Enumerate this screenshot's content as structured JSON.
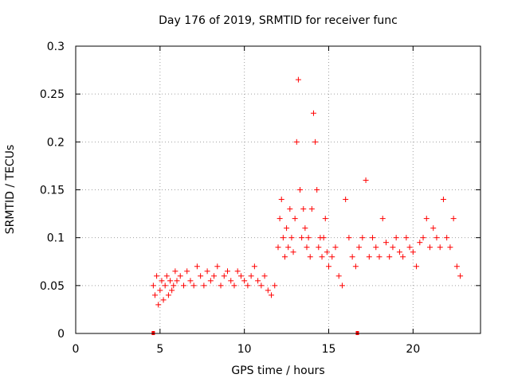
{
  "chart_data": {
    "type": "scatter",
    "title": "Day 176 of 2019, SRMTID for receiver func",
    "xlabel": "GPS time / hours",
    "ylabel": "SRMTID / TECUs",
    "xlim": [
      0,
      24
    ],
    "ylim": [
      0,
      0.3
    ],
    "xticks": [
      0,
      5,
      10,
      15,
      20
    ],
    "yticks": [
      0,
      0.05,
      0.1,
      0.15,
      0.2,
      0.25,
      0.3
    ],
    "xtick_labels": [
      "0",
      "5",
      "10",
      "15",
      "20"
    ],
    "ytick_labels": [
      "0",
      "0.05",
      "0.1",
      "0.15",
      "0.2",
      "0.25",
      "0.3"
    ],
    "grid": true,
    "marker": "plus",
    "color": "#ff0000",
    "series": [
      {
        "x": [
          4.6,
          4.7,
          4.8,
          4.9,
          5.0,
          5.1,
          5.2,
          5.3,
          5.4,
          5.5,
          5.6,
          5.7,
          5.8,
          5.9,
          6.0,
          6.2,
          6.4,
          6.6,
          6.8,
          7.0,
          7.2,
          7.4,
          7.6,
          7.8,
          8.0,
          8.2,
          8.4,
          8.6,
          8.8,
          9.0,
          9.2,
          9.4,
          9.6,
          9.8,
          10.0,
          10.2,
          10.4,
          10.6,
          10.8,
          11.0,
          11.2,
          11.4,
          11.6,
          11.8,
          12.0,
          12.1,
          12.2,
          12.3,
          12.4,
          12.5,
          12.6,
          12.7,
          12.8,
          12.9,
          13.0,
          13.1,
          13.2,
          13.3,
          13.4,
          13.5,
          13.6,
          13.7,
          13.8,
          13.9,
          14.0,
          14.1,
          14.2,
          14.3,
          14.4,
          14.5,
          14.6,
          14.7,
          14.8,
          14.9,
          15.0,
          15.2,
          15.4,
          15.6,
          15.8,
          16.0,
          16.2,
          16.4,
          16.6,
          16.8,
          17.0,
          17.2,
          17.4,
          17.6,
          17.8,
          18.0,
          18.2,
          18.4,
          18.6,
          18.8,
          19.0,
          19.2,
          19.4,
          19.6,
          19.8,
          20.0,
          20.2,
          20.4,
          20.6,
          20.8,
          21.0,
          21.2,
          21.4,
          21.6,
          21.8,
          22.0,
          22.2,
          22.4,
          22.6,
          22.8
        ],
        "y": [
          0.05,
          0.04,
          0.06,
          0.03,
          0.045,
          0.055,
          0.035,
          0.05,
          0.06,
          0.04,
          0.055,
          0.045,
          0.05,
          0.065,
          0.055,
          0.06,
          0.05,
          0.065,
          0.055,
          0.05,
          0.07,
          0.06,
          0.05,
          0.065,
          0.055,
          0.06,
          0.07,
          0.05,
          0.06,
          0.065,
          0.055,
          0.05,
          0.065,
          0.06,
          0.055,
          0.05,
          0.06,
          0.07,
          0.055,
          0.05,
          0.06,
          0.045,
          0.04,
          0.05,
          0.09,
          0.12,
          0.14,
          0.1,
          0.08,
          0.11,
          0.09,
          0.13,
          0.1,
          0.085,
          0.12,
          0.2,
          0.265,
          0.15,
          0.1,
          0.13,
          0.11,
          0.09,
          0.1,
          0.08,
          0.13,
          0.23,
          0.2,
          0.15,
          0.09,
          0.1,
          0.08,
          0.1,
          0.12,
          0.085,
          0.07,
          0.08,
          0.09,
          0.06,
          0.05,
          0.14,
          0.1,
          0.08,
          0.07,
          0.09,
          0.1,
          0.16,
          0.08,
          0.1,
          0.09,
          0.08,
          0.12,
          0.095,
          0.08,
          0.09,
          0.1,
          0.085,
          0.08,
          0.1,
          0.09,
          0.085,
          0.07,
          0.095,
          0.1,
          0.12,
          0.09,
          0.11,
          0.1,
          0.09,
          0.14,
          0.1,
          0.09,
          0.12,
          0.07,
          0.06
        ]
      }
    ],
    "axis_markers_x": [
      4.6,
      16.7
    ]
  }
}
